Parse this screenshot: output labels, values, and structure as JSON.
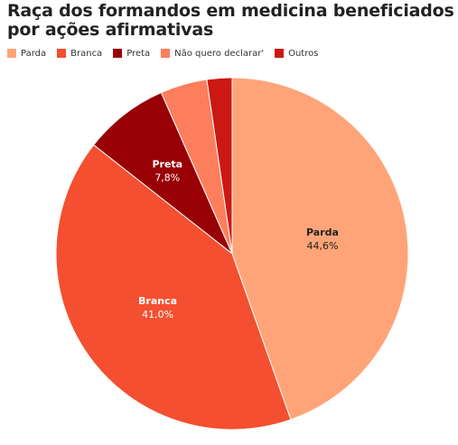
{
  "chart_data": {
    "type": "pie",
    "title": "Raça dos formandos em medicina beneficiados por ações afirmativas",
    "slices": [
      {
        "name": "Parda",
        "value": 44.6,
        "label": "44,6%",
        "color": "#ffa478",
        "show_label": true,
        "label_color": "#222222"
      },
      {
        "name": "Branca",
        "value": 41.0,
        "label": "41,0%",
        "color": "#f44f30",
        "show_label": true,
        "label_color": "#ffffff"
      },
      {
        "name": "Preta",
        "value": 7.8,
        "label": "7,8%",
        "color": "#980005",
        "show_label": true,
        "label_color": "#ffffff"
      },
      {
        "name": "Não quero declarar'",
        "value": 4.3,
        "label": "",
        "color": "#fc7e5c",
        "show_label": false,
        "label_color": "#ffffff"
      },
      {
        "name": "Outros",
        "value": 2.3,
        "label": "",
        "color": "#cc1813",
        "show_label": false,
        "label_color": "#ffffff"
      }
    ],
    "legend_position": "top-left",
    "start_angle_deg": 0,
    "direction": "clockwise"
  }
}
